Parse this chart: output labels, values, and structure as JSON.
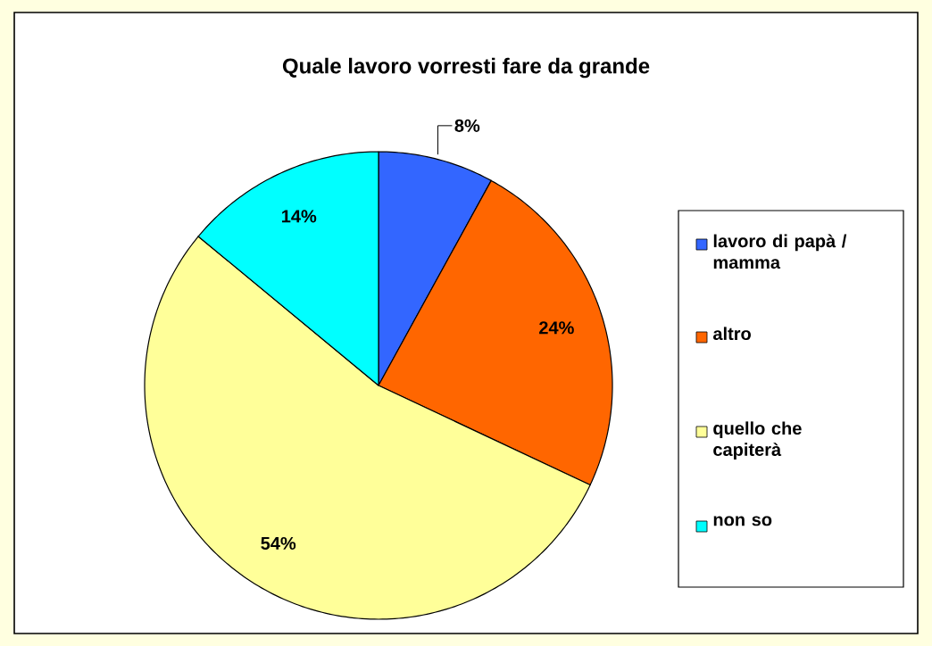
{
  "chart_data": {
    "type": "pie",
    "title": "Quale lavoro vorresti fare da grande",
    "categories": [
      "lavoro di papà / mamma",
      "altro",
      "quello che capiterà",
      "non so"
    ],
    "values": [
      8,
      24,
      54,
      14
    ],
    "value_labels": [
      "8%",
      "24%",
      "54%",
      "14%"
    ],
    "colors": [
      "#3366ff",
      "#ff6600",
      "#ffff99",
      "#00ffff"
    ],
    "legend": "right"
  }
}
